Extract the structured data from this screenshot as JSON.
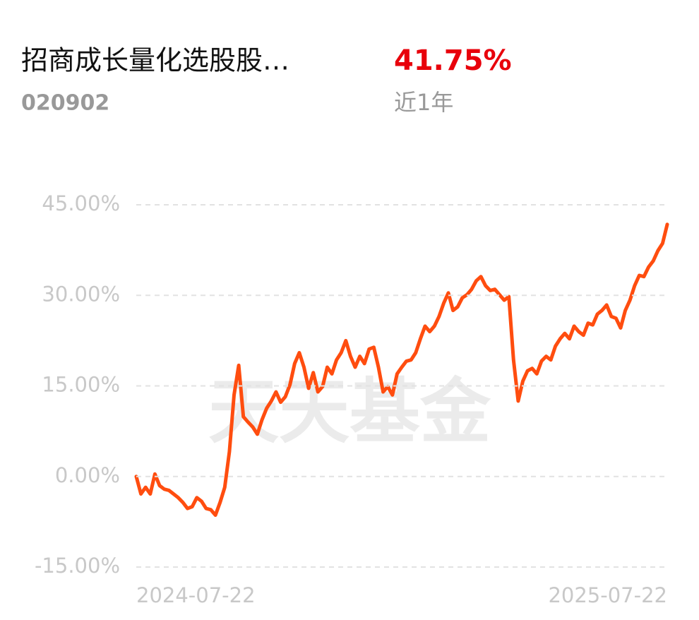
{
  "header": {
    "title": "招商成长量化选股股…",
    "code": "020902",
    "return": "41.75%",
    "period": "近1年"
  },
  "chart_data": {
    "type": "line",
    "watermark": "天天基金",
    "x": [
      "2024-07-22",
      null,
      null,
      null,
      null,
      null,
      null,
      null,
      null,
      null,
      null,
      null,
      null,
      null,
      null,
      null,
      null,
      null,
      null,
      null,
      null,
      null,
      null,
      null,
      null,
      null,
      null,
      null,
      null,
      null,
      null,
      null,
      null,
      null,
      null,
      null,
      null,
      null,
      null,
      null,
      null,
      null,
      null,
      null,
      null,
      null,
      null,
      null,
      null,
      null,
      null,
      null,
      null,
      null,
      null,
      null,
      null,
      null,
      null,
      null,
      null,
      null,
      null,
      null,
      null,
      null,
      null,
      null,
      null,
      null,
      null,
      null,
      null,
      null,
      null,
      null,
      null,
      null,
      null,
      null,
      null,
      null,
      null,
      null,
      null,
      null,
      null,
      null,
      null,
      null,
      null,
      null,
      null,
      null,
      null,
      null,
      null,
      null,
      null,
      null,
      null,
      null,
      null,
      null,
      null,
      null,
      null,
      null,
      null,
      null,
      null,
      null,
      null,
      null,
      "2025-07-22"
    ],
    "series": [
      {
        "color": "#ff4d0f",
        "values": [
          0,
          -2.9,
          -1.8,
          -2.9,
          0.4,
          -1.5,
          -2.1,
          -2.3,
          -2.9,
          -3.5,
          -4.3,
          -5.3,
          -5.0,
          -3.5,
          -4.1,
          -5.3,
          -5.5,
          -6.4,
          -4.3,
          -1.8,
          4.1,
          13.5,
          18.4,
          9.9,
          9.0,
          8.2,
          7.0,
          9.4,
          11.3,
          12.5,
          14.0,
          12.3,
          13.2,
          15.2,
          18.7,
          20.5,
          18.1,
          14.6,
          17.2,
          14.0,
          14.9,
          18.1,
          17.0,
          19.3,
          20.5,
          22.5,
          19.9,
          18.1,
          19.9,
          18.7,
          21.1,
          21.4,
          18.1,
          14.0,
          14.9,
          13.5,
          17.0,
          18.1,
          19.1,
          19.3,
          20.5,
          22.8,
          24.9,
          24.0,
          24.9,
          26.5,
          28.7,
          30.4,
          27.5,
          28.1,
          29.6,
          30.1,
          31.0,
          32.4,
          33.1,
          31.6,
          30.8,
          31.0,
          30.1,
          29.2,
          29.8,
          19.3,
          12.5,
          15.8,
          17.5,
          17.9,
          17.0,
          19.1,
          19.9,
          19.3,
          21.6,
          22.8,
          23.7,
          22.8,
          24.9,
          24.0,
          23.4,
          25.4,
          25.1,
          26.9,
          27.5,
          28.4,
          26.5,
          26.2,
          24.6,
          27.5,
          29.2,
          31.6,
          33.3,
          33.1,
          34.7,
          35.7,
          37.4,
          38.6,
          41.75
        ]
      }
    ],
    "ylim": [
      -15,
      45
    ],
    "yticks": [
      {
        "value": -15,
        "label": "-15.00%"
      },
      {
        "value": 0,
        "label": "0.00%"
      },
      {
        "value": 15,
        "label": "15.00%"
      },
      {
        "value": 30,
        "label": "30.00%"
      },
      {
        "value": 45,
        "label": "45.00%"
      }
    ],
    "grid": true
  }
}
